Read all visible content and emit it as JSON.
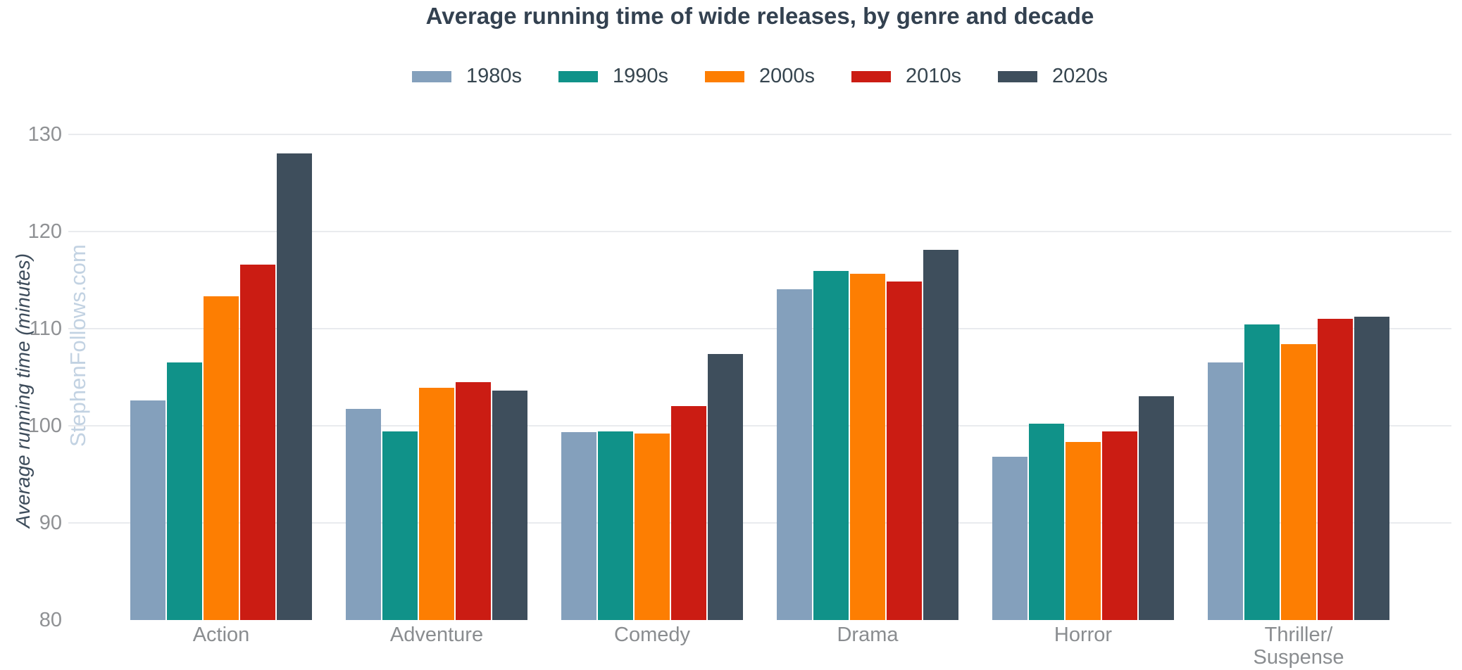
{
  "chart_data": {
    "type": "bar",
    "title": "Average running time of wide releases, by genre and decade",
    "ylabel": "Average running time (minutes)",
    "xlabel": "",
    "watermark": "StephenFollows.com",
    "categories": [
      "Action",
      "Adventure",
      "Comedy",
      "Drama",
      "Horror",
      "Thriller/Suspense"
    ],
    "series": [
      {
        "name": "1980s",
        "color": "#84a0bc",
        "values": [
          102.6,
          101.7,
          99.3,
          114.0,
          96.8,
          106.5
        ]
      },
      {
        "name": "1990s",
        "color": "#109289",
        "values": [
          106.5,
          99.4,
          99.4,
          115.9,
          100.2,
          110.4
        ]
      },
      {
        "name": "2000s",
        "color": "#fd7e02",
        "values": [
          113.3,
          103.9,
          99.2,
          115.6,
          98.3,
          108.4
        ]
      },
      {
        "name": "2010s",
        "color": "#cb1c13",
        "values": [
          116.6,
          104.5,
          102.0,
          114.8,
          99.4,
          111.0
        ]
      },
      {
        "name": "2020s",
        "color": "#3e4e5c",
        "values": [
          128.0,
          103.6,
          107.4,
          118.1,
          103.0,
          111.2
        ]
      }
    ],
    "ylim": [
      80,
      130
    ],
    "yticks": [
      80,
      90,
      100,
      110,
      120,
      130
    ],
    "grid": "horizontal, light gray, no gridline at 80, no axis lines",
    "legend_position": "top center",
    "colors": {
      "title_text": "#334150",
      "legend_text": "#36454f",
      "tick_text": "#8f9194",
      "category_text": "#8a8d90",
      "axis_title_text": "#3d4c5b",
      "watermark_text": "#c2d2e2",
      "gridline": "#e9ebee",
      "background": "#ffffff"
    }
  }
}
